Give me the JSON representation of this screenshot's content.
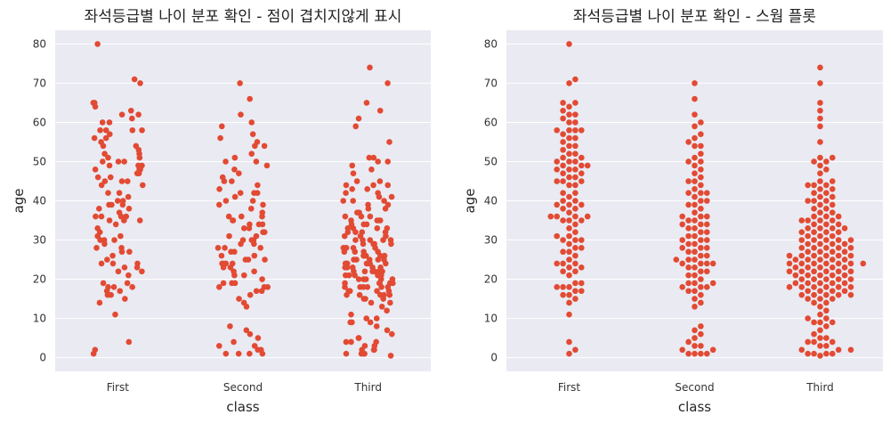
{
  "chart_data": [
    {
      "type": "scatter",
      "title": "좌석등급별 나이 분포 확인 - 점이 겹치지않게 표시",
      "xlabel": "class",
      "ylabel": "age",
      "categories": [
        "First",
        "Second",
        "Third"
      ],
      "yticks": [
        0,
        10,
        20,
        30,
        40,
        50,
        60,
        70,
        80
      ],
      "ylim": [
        -3.5,
        83.5
      ],
      "grid": true,
      "point_color": "#e24a33",
      "series": [
        {
          "category": "First",
          "values": [
            80,
            71,
            70,
            65,
            65,
            64,
            63,
            62,
            62,
            61,
            60,
            60,
            58,
            58,
            58,
            58,
            57,
            56,
            56,
            55,
            54,
            54,
            53,
            52,
            52,
            51,
            51,
            50,
            50,
            50,
            49,
            49,
            49,
            48,
            48,
            48,
            47,
            47,
            46,
            46,
            45,
            45,
            45,
            44,
            44,
            42,
            42,
            41,
            40,
            40,
            39,
            39,
            39,
            38,
            38,
            37,
            36,
            36,
            36,
            36,
            35,
            35,
            35,
            34,
            33,
            32,
            31,
            31,
            30,
            30,
            30,
            29,
            28,
            28,
            27,
            27,
            26,
            25,
            24,
            24,
            24,
            23,
            23,
            22,
            22,
            21,
            19,
            19,
            18,
            18,
            18,
            17,
            17,
            16,
            16,
            15,
            14,
            11,
            4,
            2,
            1
          ]
        },
        {
          "category": "Second",
          "values": [
            70,
            66,
            62,
            60,
            59,
            57,
            56,
            55,
            54,
            54,
            52,
            51,
            50,
            50,
            49,
            48,
            47,
            46,
            45,
            45,
            44,
            43,
            42,
            42,
            42,
            41,
            40,
            40,
            39,
            39,
            38,
            37,
            36,
            36,
            36,
            35,
            35,
            34,
            34,
            34,
            33,
            33,
            32,
            32,
            31,
            31,
            30,
            30,
            30,
            29,
            29,
            28,
            28,
            28,
            27,
            27,
            26,
            26,
            25,
            25,
            25,
            24,
            24,
            24,
            24,
            23,
            23,
            22,
            22,
            21,
            21,
            20,
            19,
            19,
            19,
            18,
            18,
            18,
            17,
            17,
            16,
            15,
            14,
            13,
            8,
            7,
            6,
            5,
            4,
            3,
            3,
            2,
            2,
            1,
            1,
            1,
            1
          ]
        },
        {
          "category": "Third",
          "values": [
            74,
            70,
            65,
            63,
            61,
            59,
            55,
            51,
            51,
            50,
            50,
            49,
            48,
            47,
            45,
            45,
            44,
            44,
            44,
            43,
            43,
            42,
            42,
            41,
            41,
            40,
            40,
            40,
            39,
            39,
            38,
            38,
            37,
            37,
            36,
            36,
            36,
            35,
            35,
            35,
            35,
            34,
            34,
            34,
            33,
            33,
            33,
            33,
            32,
            32,
            32,
            32,
            31,
            31,
            31,
            30,
            30,
            30,
            30,
            30,
            29,
            29,
            29,
            29,
            28,
            28,
            28,
            28,
            28,
            27,
            27,
            27,
            27,
            26,
            26,
            26,
            26,
            26,
            26,
            25,
            25,
            25,
            25,
            25,
            24,
            24,
            24,
            24,
            24,
            24,
            24,
            23,
            23,
            23,
            23,
            23,
            22,
            22,
            22,
            22,
            22,
            22,
            21,
            21,
            21,
            21,
            21,
            20,
            20,
            20,
            20,
            20,
            19,
            19,
            19,
            19,
            19,
            18,
            18,
            18,
            18,
            18,
            18,
            17,
            17,
            17,
            17,
            16,
            16,
            16,
            16,
            16,
            15,
            15,
            15,
            14,
            14,
            13,
            12,
            11,
            10,
            10,
            9,
            9,
            9,
            8,
            7,
            6,
            5,
            5,
            4,
            4,
            4,
            3,
            3,
            2,
            2,
            2,
            1,
            1,
            1,
            1,
            0.5
          ]
        }
      ]
    },
    {
      "type": "scatter",
      "title": "좌석등급별 나이 분포 확인 - 스웜 플롯",
      "xlabel": "class",
      "ylabel": "age",
      "categories": [
        "First",
        "Second",
        "Third"
      ],
      "yticks": [
        0,
        10,
        20,
        30,
        40,
        50,
        60,
        70,
        80
      ],
      "ylim": [
        -3.5,
        83.5
      ],
      "grid": true,
      "point_color": "#e24a33",
      "series": [
        {
          "category": "First",
          "values": [
            80,
            71,
            70,
            65,
            65,
            64,
            63,
            62,
            62,
            61,
            60,
            60,
            58,
            58,
            58,
            58,
            57,
            56,
            56,
            55,
            54,
            54,
            53,
            52,
            52,
            51,
            51,
            50,
            50,
            50,
            49,
            49,
            49,
            48,
            48,
            48,
            47,
            47,
            46,
            46,
            45,
            45,
            45,
            44,
            44,
            42,
            42,
            41,
            40,
            40,
            39,
            39,
            39,
            38,
            38,
            37,
            36,
            36,
            36,
            36,
            35,
            35,
            35,
            34,
            33,
            32,
            31,
            31,
            30,
            30,
            30,
            29,
            28,
            28,
            27,
            27,
            26,
            25,
            24,
            24,
            24,
            23,
            23,
            22,
            22,
            21,
            19,
            19,
            18,
            18,
            18,
            17,
            17,
            16,
            16,
            15,
            14,
            11,
            4,
            2,
            1
          ]
        },
        {
          "category": "Second",
          "values": [
            70,
            66,
            62,
            60,
            59,
            57,
            56,
            55,
            54,
            54,
            52,
            51,
            50,
            50,
            49,
            48,
            47,
            46,
            45,
            45,
            44,
            43,
            42,
            42,
            42,
            41,
            40,
            40,
            39,
            39,
            38,
            37,
            36,
            36,
            36,
            35,
            35,
            34,
            34,
            34,
            33,
            33,
            32,
            32,
            31,
            31,
            30,
            30,
            30,
            29,
            29,
            28,
            28,
            28,
            27,
            27,
            26,
            26,
            25,
            25,
            25,
            24,
            24,
            24,
            24,
            23,
            23,
            22,
            22,
            21,
            21,
            20,
            19,
            19,
            19,
            18,
            18,
            18,
            17,
            17,
            16,
            15,
            14,
            13,
            8,
            7,
            6,
            5,
            4,
            3,
            3,
            2,
            2,
            1,
            1,
            1,
            1
          ]
        },
        {
          "category": "Third",
          "values": [
            74,
            70,
            65,
            63,
            61,
            59,
            55,
            51,
            51,
            50,
            50,
            49,
            48,
            47,
            45,
            45,
            44,
            44,
            44,
            43,
            43,
            42,
            42,
            41,
            41,
            40,
            40,
            40,
            39,
            39,
            38,
            38,
            37,
            37,
            36,
            36,
            36,
            35,
            35,
            35,
            35,
            34,
            34,
            34,
            33,
            33,
            33,
            33,
            32,
            32,
            32,
            32,
            31,
            31,
            31,
            30,
            30,
            30,
            30,
            30,
            29,
            29,
            29,
            29,
            28,
            28,
            28,
            28,
            28,
            27,
            27,
            27,
            27,
            26,
            26,
            26,
            26,
            26,
            26,
            25,
            25,
            25,
            25,
            25,
            24,
            24,
            24,
            24,
            24,
            24,
            24,
            23,
            23,
            23,
            23,
            23,
            22,
            22,
            22,
            22,
            22,
            22,
            21,
            21,
            21,
            21,
            21,
            20,
            20,
            20,
            20,
            20,
            19,
            19,
            19,
            19,
            19,
            18,
            18,
            18,
            18,
            18,
            18,
            17,
            17,
            17,
            17,
            16,
            16,
            16,
            16,
            16,
            15,
            15,
            15,
            14,
            14,
            13,
            12,
            11,
            10,
            10,
            9,
            9,
            9,
            8,
            7,
            6,
            5,
            5,
            4,
            4,
            4,
            3,
            3,
            2,
            2,
            2,
            1,
            1,
            1,
            1,
            0.5
          ]
        }
      ]
    }
  ]
}
